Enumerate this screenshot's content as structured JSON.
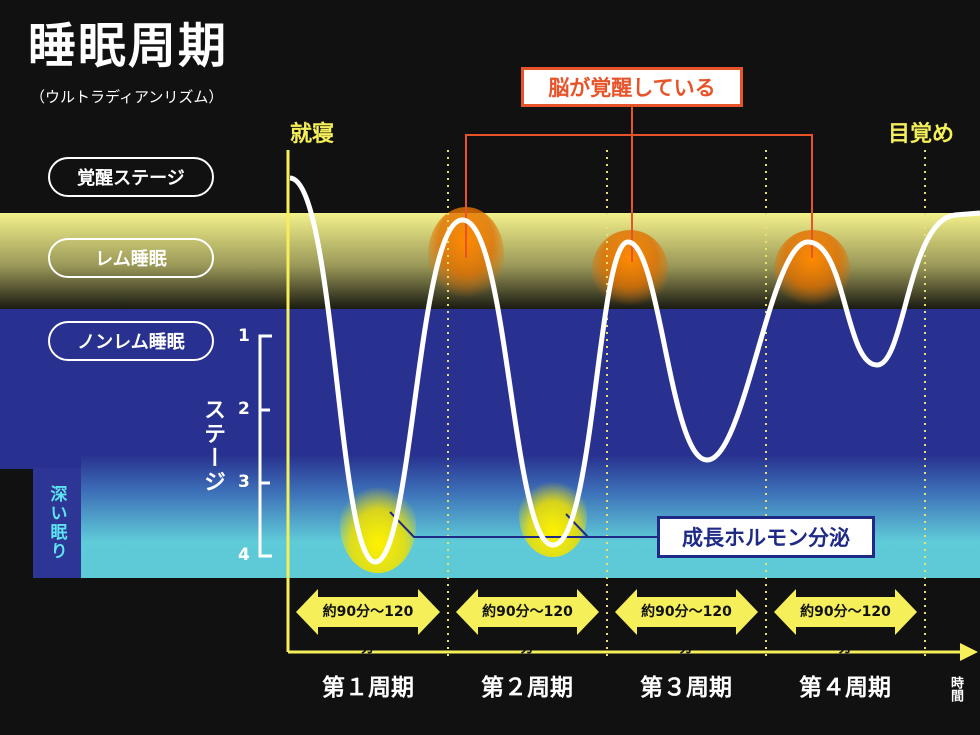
{
  "title": "睡眠周期",
  "subtitle": "（ウルトラディアンリズム）",
  "bedtime_label": "就寝",
  "wake_label": "目覚め",
  "brain_awake_label": "脳が覚醒している",
  "growth_hormone_label": "成長ホルモン分泌",
  "stages": {
    "wake": "覚醒ステージ",
    "rem": "レム睡眠",
    "nrem": "ノンレム睡眠",
    "deep": "深い眠り",
    "stage_axis_label": "ステージ",
    "ticks": [
      "1",
      "2",
      "3",
      "4"
    ]
  },
  "durations": [
    "約90分〜120分",
    "約90分〜120分",
    "約90分〜120分",
    "約90分〜120分"
  ],
  "cycles": [
    "第１周期",
    "第２周期",
    "第３周期",
    "第４周期"
  ],
  "time_axis_label": "時間",
  "colors": {
    "rem_band": "#e8e682",
    "nrem_band": "#28318f",
    "deep_band": "#5dcad6",
    "accent_yellow": "#f5ef5a",
    "brain_orange": "#e8542a",
    "hormone_navy": "#1f2a86"
  }
}
